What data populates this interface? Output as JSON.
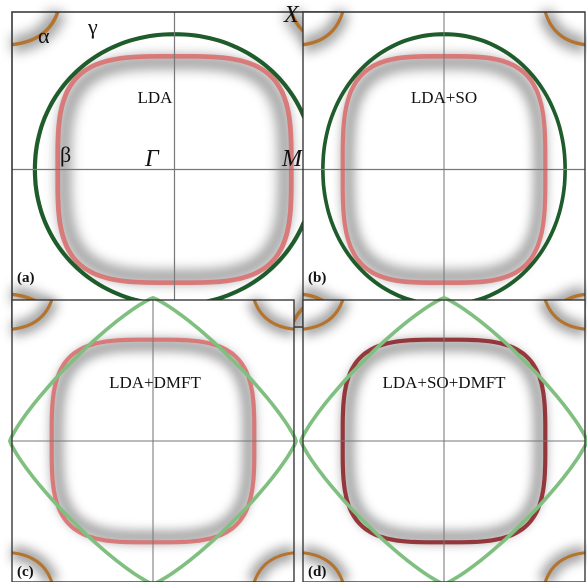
{
  "panels": [
    {
      "id": "a",
      "tag": "(a)",
      "title": "LDA"
    },
    {
      "id": "b",
      "tag": "(b)",
      "title": "LDA+SO"
    },
    {
      "id": "c",
      "tag": "(c)",
      "title": "LDA+DMFT"
    },
    {
      "id": "d",
      "tag": "(d)",
      "title": "LDA+SO+DMFT"
    }
  ],
  "symbols": {
    "alpha": "α",
    "gamma": "γ",
    "beta": "β",
    "Gamma": "Γ",
    "M": "M",
    "X": "X"
  },
  "colors": {
    "alpha_band": "#b5742e",
    "beta_band": "#d96b6b",
    "gamma_band": "#1f5c2b",
    "gamma_band_light": "#7fbf7f",
    "beta_band_dark": "#8a1c22",
    "spectral_gray": "#555555",
    "frame": "#333333",
    "axis": "#777777"
  },
  "panel_bands": {
    "a": {
      "beta": "pink",
      "gamma": "dark"
    },
    "b": {
      "beta": "pink",
      "gamma": "dark"
    },
    "c": {
      "beta": "pink",
      "gamma": "light"
    },
    "d": {
      "beta": "dark",
      "gamma": "light"
    }
  }
}
